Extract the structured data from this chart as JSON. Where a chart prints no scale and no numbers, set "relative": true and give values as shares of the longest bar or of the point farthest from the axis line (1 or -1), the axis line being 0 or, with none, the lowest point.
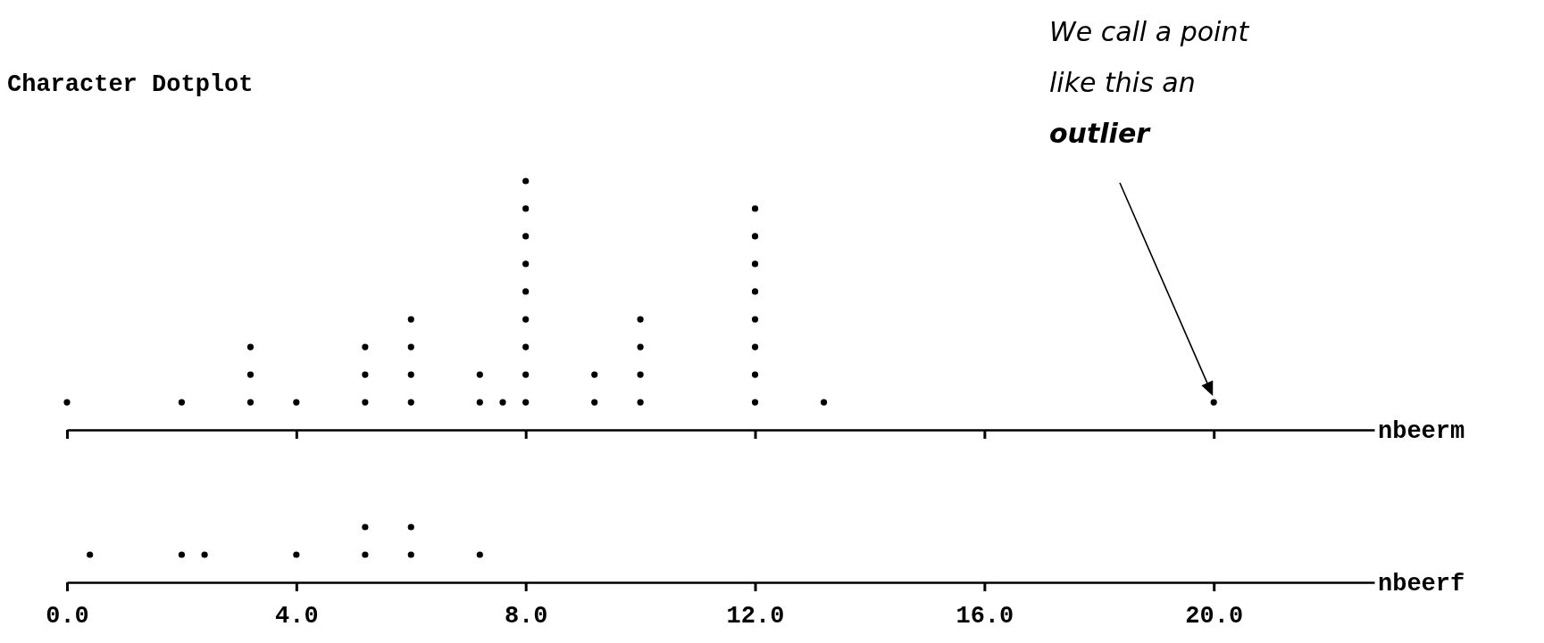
{
  "chart_data": [
    {
      "type": "scatter",
      "title": "Character Dotplot",
      "xlabel": "nbeerm",
      "color": "#000000",
      "marker": "circle",
      "tick_labels": false,
      "relative": true,
      "x": [
        0,
        2,
        3.2,
        3.2,
        3.2,
        4,
        5.2,
        5.2,
        5.2,
        6,
        6,
        6,
        6,
        7.2,
        7.2,
        7.6,
        8,
        8,
        8,
        8,
        8,
        8,
        8,
        8,
        8,
        9.2,
        9.2,
        10,
        10,
        10,
        10,
        12,
        12,
        12,
        12,
        12,
        12,
        12,
        12,
        13.2,
        20
      ],
      "values": [
        0.111,
        0.111,
        0.111,
        0.222,
        0.333,
        0.111,
        0.111,
        0.222,
        0.333,
        0.111,
        0.222,
        0.333,
        0.444,
        0.111,
        0.222,
        0.111,
        0.111,
        0.222,
        0.333,
        0.444,
        0.556,
        0.667,
        0.778,
        0.889,
        1,
        0.111,
        0.222,
        0.111,
        0.222,
        0.333,
        0.444,
        0.111,
        0.222,
        0.333,
        0.444,
        0.556,
        0.667,
        0.778,
        0.889,
        0.111,
        0.111
      ],
      "xlim": [
        0,
        22.8
      ],
      "xticks": [
        0,
        4,
        8,
        12,
        16,
        20
      ],
      "annotations": [
        "We call a point like this an outlier"
      ]
    },
    {
      "type": "scatter",
      "xlabel": "nbeerf",
      "color": "#000000",
      "marker": "circle",
      "tick_labels": "x",
      "relative": true,
      "x": [
        0.4,
        2,
        2.4,
        4,
        5.2,
        5.2,
        6,
        6,
        7.2
      ],
      "values": [
        0.5,
        0.5,
        0.5,
        0.5,
        0.5,
        1,
        0.5,
        1,
        0.5
      ],
      "xlim": [
        0,
        22.8
      ],
      "xticks": [
        {
          "value": 0,
          "label": "0.0"
        },
        {
          "value": 4,
          "label": "4.0"
        },
        {
          "value": 8,
          "label": "8.0"
        },
        {
          "value": 12,
          "label": "12.0"
        },
        {
          "value": 16,
          "label": "16.0"
        },
        {
          "value": 20,
          "label": "20.0"
        }
      ]
    }
  ]
}
